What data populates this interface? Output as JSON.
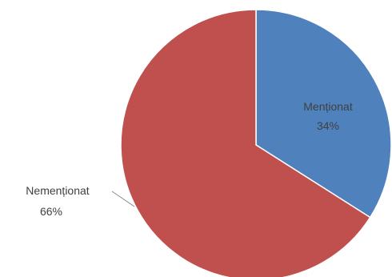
{
  "chart_data": {
    "type": "pie",
    "title": "",
    "slices": [
      {
        "label": "Menționat",
        "value": 34,
        "display": "34%",
        "color": "#4f81bd"
      },
      {
        "label": "Nemenționat",
        "value": 66,
        "display": "66%",
        "color": "#c0504d"
      }
    ],
    "legend": "none"
  }
}
